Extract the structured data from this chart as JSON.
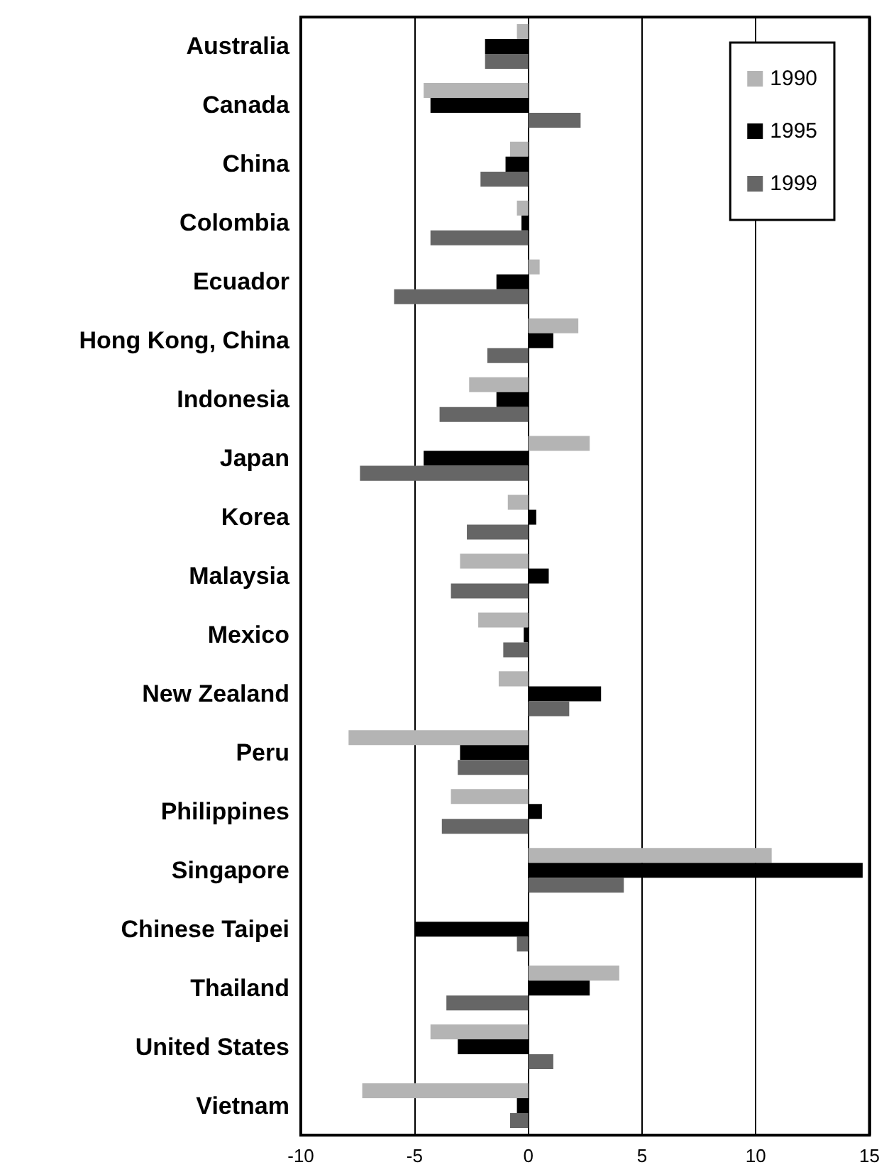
{
  "chart_data": {
    "type": "bar",
    "orientation": "horizontal",
    "categories": [
      "Australia",
      "Canada",
      "China",
      "Colombia",
      "Ecuador",
      "Hong Kong, China",
      "Indonesia",
      "Japan",
      "Korea",
      "Malaysia",
      "Mexico",
      "New Zealand",
      "Peru",
      "Philippines",
      "Singapore",
      "Chinese Taipei",
      "Thailand",
      "United States",
      "Vietnam"
    ],
    "series": [
      {
        "name": "1990",
        "color": "#b4b4b4",
        "values": [
          -0.5,
          -4.6,
          -0.8,
          -0.5,
          0.5,
          2.2,
          -2.6,
          2.7,
          -0.9,
          -3.0,
          -2.2,
          -1.3,
          -7.9,
          -3.4,
          10.7,
          null,
          4.0,
          -4.3,
          -7.3
        ]
      },
      {
        "name": "1995",
        "color": "#000000",
        "values": [
          -1.9,
          -4.3,
          -1.0,
          -0.3,
          -1.4,
          1.1,
          -1.4,
          -4.6,
          0.35,
          0.9,
          -0.2,
          3.2,
          -3.0,
          0.6,
          14.7,
          -5.0,
          2.7,
          -3.1,
          -0.5
        ]
      },
      {
        "name": "1999",
        "color": "#666666",
        "values": [
          -1.9,
          2.3,
          -2.1,
          -4.3,
          -5.9,
          -1.8,
          -3.9,
          -7.4,
          -2.7,
          -3.4,
          -1.1,
          1.8,
          -3.1,
          -3.8,
          4.2,
          -0.5,
          -3.6,
          1.1,
          -0.8
        ]
      }
    ],
    "xlim": [
      -10,
      15
    ],
    "xticks": [
      -10,
      -5,
      0,
      5,
      10,
      15
    ],
    "grid": "x",
    "legend": "top right"
  }
}
